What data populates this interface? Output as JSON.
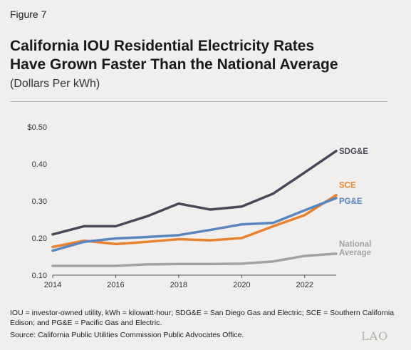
{
  "figure_label": "Figure 7",
  "title_line1": "California IOU Residential Electricity Rates",
  "title_line2": "Have Grown Faster Than the National Average",
  "subtitle": "(Dollars Per kWh)",
  "note": "IOU = investor-owned utility, kWh = kilowatt-hour; SDG&E = San Diego Gas and Electric; SCE = Southern California Edison; and PG&E = Pacific Gas and Electric.",
  "source": "Source: California Public Utilities Commission Public Advocates Office.",
  "logo_text": "LAO",
  "chart_data": {
    "type": "line",
    "x": [
      2014,
      2015,
      2016,
      2017,
      2018,
      2019,
      2020,
      2021,
      2022,
      2023
    ],
    "xticks": [
      2014,
      2016,
      2018,
      2020,
      2022
    ],
    "xtick_labels": [
      "2014",
      "2016",
      "2018",
      "2020",
      "2022"
    ],
    "yticks": [
      0.1,
      0.2,
      0.3,
      0.4,
      0.5
    ],
    "ytick_labels": [
      "0.10",
      "0.20",
      "0.30",
      "0.40",
      "$0.50"
    ],
    "xlim": [
      2014,
      2023
    ],
    "ylim": [
      0.1,
      0.5
    ],
    "grid": "horizontal-baseline-only",
    "legend": "direct labels at right end of lines",
    "series": [
      {
        "name": "SDG&E",
        "label_lines": [
          "SDG&E"
        ],
        "color": "#4a4758",
        "values": [
          0.21,
          0.232,
          0.232,
          0.259,
          0.293,
          0.277,
          0.285,
          0.32,
          0.377,
          0.435
        ]
      },
      {
        "name": "SCE",
        "label_lines": [
          "SCE"
        ],
        "color": "#e8822e",
        "values": [
          0.176,
          0.193,
          0.184,
          0.19,
          0.197,
          0.194,
          0.2,
          0.232,
          0.262,
          0.316
        ]
      },
      {
        "name": "PG&E",
        "label_lines": [
          "PG&E"
        ],
        "color": "#5b85be",
        "values": [
          0.166,
          0.19,
          0.199,
          0.203,
          0.208,
          0.222,
          0.237,
          0.241,
          0.275,
          0.308
        ]
      },
      {
        "name": "National Average",
        "label_lines": [
          "National",
          "Average"
        ],
        "color": "#a3a2a1",
        "values": [
          0.125,
          0.125,
          0.125,
          0.129,
          0.13,
          0.13,
          0.131,
          0.137,
          0.152,
          0.158
        ]
      }
    ]
  }
}
